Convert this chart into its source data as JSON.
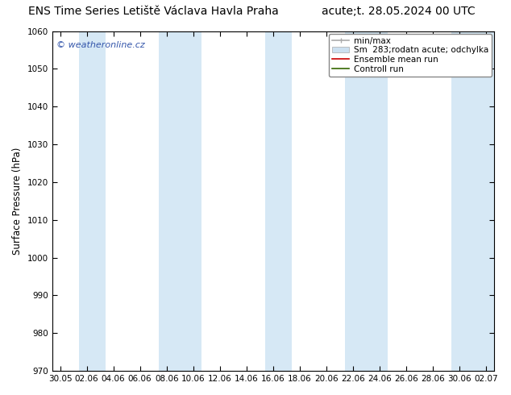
{
  "title_left": "ENS Time Series Letiště Václava Havla Praha",
  "title_right": "acute;t. 28.05.2024 00 UTC",
  "ylabel": "Surface Pressure (hPa)",
  "ylim": [
    970,
    1060
  ],
  "yticks": [
    970,
    980,
    990,
    1000,
    1010,
    1020,
    1030,
    1040,
    1050,
    1060
  ],
  "x_labels": [
    "30.05",
    "02.06",
    "04.06",
    "06.06",
    "08.06",
    "10.06",
    "12.06",
    "14.06",
    "16.06",
    "18.06",
    "20.06",
    "22.06",
    "24.06",
    "26.06",
    "28.06",
    "30.06",
    "02.07"
  ],
  "band_color": "#d6e8f5",
  "watermark": "© weatheronline.cz",
  "legend_minmax_label": "min/max",
  "legend_spread_label": "Sm  283;rodatn acute; odchylka",
  "legend_mean_label": "Ensemble mean run",
  "legend_control_label": "Controll run",
  "mean_color": "#cc0000",
  "control_color": "#336600",
  "minmax_color": "#aaaaaa",
  "spread_color": "#cce0f0",
  "bg_color": "#ffffff",
  "title_fontsize": 10,
  "tick_fontsize": 7.5,
  "ylabel_fontsize": 8.5
}
